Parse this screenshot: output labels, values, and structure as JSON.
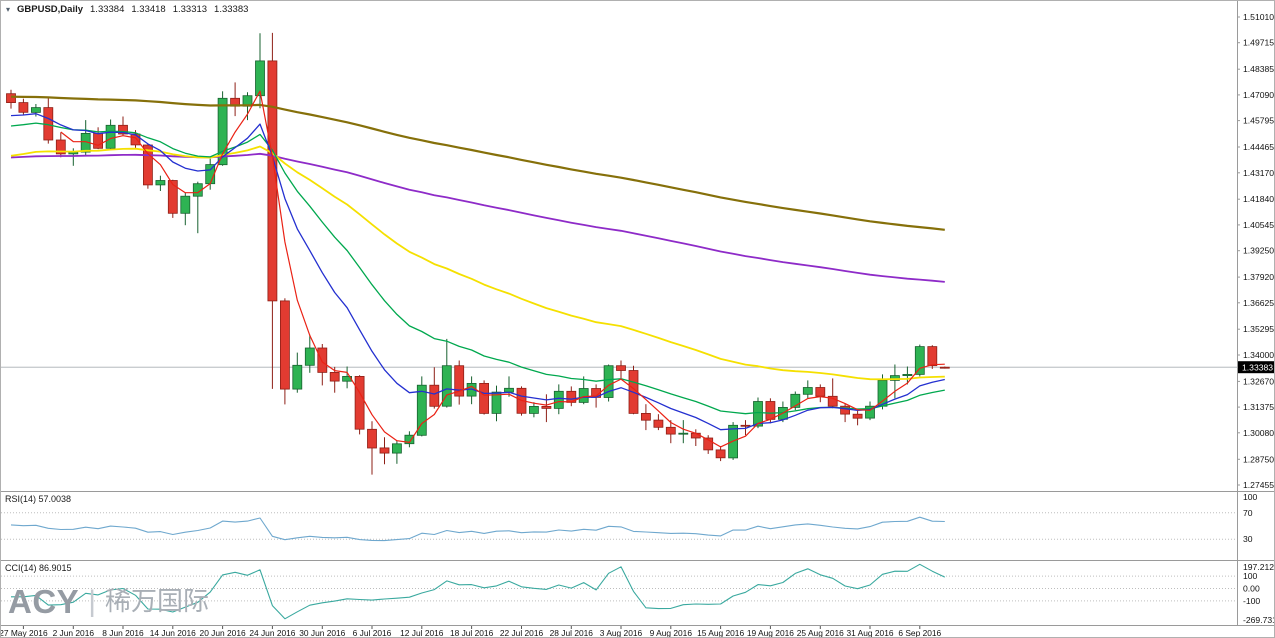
{
  "titlebar": {
    "symbol": "GBPUSD,Daily",
    "open": "1.33384",
    "high": "1.33418",
    "low": "1.33313",
    "close": "1.33383"
  },
  "icons": {
    "chart_menu": "▾"
  },
  "watermark": {
    "brand": "ACY",
    "bar": "|",
    "cn": "稀万国际"
  },
  "colors": {
    "background": "#FFFFFF",
    "border": "#9A9A9A",
    "axis_text": "#111111",
    "bull": "#2EB353",
    "bull_border": "#17612F",
    "bear": "#E23B31",
    "bear_border": "#8E1F16",
    "price_line": "#A9AFB5",
    "current_tag_bg": "#000000",
    "current_tag_text": "#FFFFFF",
    "level_dotted": "#BDBDBD"
  },
  "chart_data": {
    "type": "candlestick",
    "symbol": "GBPUSD",
    "timeframe": "Daily",
    "title": "GBPUSD,Daily",
    "price_axis": {
      "min": 1.27455,
      "max": 1.5101,
      "current": 1.33383,
      "current_label": "1.33383",
      "labels": [
        "1.51010",
        "1.49715",
        "1.48385",
        "1.47090",
        "1.45795",
        "1.44465",
        "1.43170",
        "1.41840",
        "1.40545",
        "1.39250",
        "1.37920",
        "1.36625",
        "1.35295",
        "1.34000",
        "1.32670",
        "1.31375",
        "1.30080",
        "1.28750",
        "1.27455"
      ]
    },
    "time_axis": {
      "first_index": 1,
      "step": 4,
      "labels": [
        "27 May 2016",
        "2 Jun 2016",
        "8 Jun 2016",
        "14 Jun 2016",
        "20 Jun 2016",
        "24 Jun 2016",
        "30 Jun 2016",
        "6 Jul 2016",
        "12 Jul 2016",
        "18 Jul 2016",
        "22 Jul 2016",
        "28 Jul 2016",
        "3 Aug 2016",
        "9 Aug 2016",
        "15 Aug 2016",
        "19 Aug 2016",
        "25 Aug 2016",
        "31 Aug 2016",
        "6 Sep 2016"
      ]
    },
    "candles": [
      [
        1.4715,
        1.4735,
        1.464,
        1.467
      ],
      [
        1.467,
        1.469,
        1.4607,
        1.4621
      ],
      [
        1.4621,
        1.4663,
        1.46,
        1.4645
      ],
      [
        1.4645,
        1.47,
        1.4464,
        1.4482
      ],
      [
        1.4482,
        1.452,
        1.4395,
        1.4412
      ],
      [
        1.4412,
        1.444,
        1.4352,
        1.4421
      ],
      [
        1.4421,
        1.4582,
        1.44,
        1.4515
      ],
      [
        1.4515,
        1.4546,
        1.4436,
        1.444
      ],
      [
        1.444,
        1.4585,
        1.4436,
        1.4556
      ],
      [
        1.4556,
        1.46,
        1.4505,
        1.4512
      ],
      [
        1.4512,
        1.4532,
        1.4442,
        1.4457
      ],
      [
        1.4457,
        1.4462,
        1.4237,
        1.4256
      ],
      [
        1.4256,
        1.4302,
        1.4225,
        1.4278
      ],
      [
        1.4278,
        1.4282,
        1.409,
        1.4113
      ],
      [
        1.4113,
        1.4218,
        1.4053,
        1.4199
      ],
      [
        1.4199,
        1.4272,
        1.4013,
        1.4262
      ],
      [
        1.4262,
        1.4388,
        1.4232,
        1.4358
      ],
      [
        1.4358,
        1.4727,
        1.4352,
        1.4692
      ],
      [
        1.4692,
        1.4772,
        1.4602,
        1.4652
      ],
      [
        1.4652,
        1.4722,
        1.4582,
        1.4705
      ],
      [
        1.4705,
        1.5019,
        1.4642,
        1.488
      ],
      [
        1.488,
        1.5021,
        1.3229,
        1.3672
      ],
      [
        1.3672,
        1.3685,
        1.3151,
        1.3228
      ],
      [
        1.3228,
        1.3412,
        1.321,
        1.3348
      ],
      [
        1.3348,
        1.3502,
        1.331,
        1.3435
      ],
      [
        1.3435,
        1.3455,
        1.3247,
        1.3312
      ],
      [
        1.3312,
        1.334,
        1.321,
        1.3268
      ],
      [
        1.3268,
        1.3342,
        1.3232,
        1.3292
      ],
      [
        1.3292,
        1.3298,
        1.3,
        1.3026
      ],
      [
        1.3026,
        1.3066,
        1.2798,
        1.2932
      ],
      [
        1.2932,
        1.2986,
        1.285,
        1.2906
      ],
      [
        1.2906,
        1.2968,
        1.2852,
        1.2953
      ],
      [
        1.2953,
        1.3016,
        1.2935,
        1.2996
      ],
      [
        1.2996,
        1.3292,
        1.299,
        1.3248
      ],
      [
        1.3248,
        1.3338,
        1.313,
        1.3142
      ],
      [
        1.3142,
        1.3481,
        1.3135,
        1.3346
      ],
      [
        1.3346,
        1.3372,
        1.315,
        1.3193
      ],
      [
        1.3193,
        1.3292,
        1.3152,
        1.3257
      ],
      [
        1.3257,
        1.3272,
        1.31,
        1.3106
      ],
      [
        1.3106,
        1.3246,
        1.3066,
        1.3213
      ],
      [
        1.3213,
        1.3292,
        1.319,
        1.3232
      ],
      [
        1.3232,
        1.3242,
        1.3095,
        1.3106
      ],
      [
        1.3106,
        1.3162,
        1.3086,
        1.3141
      ],
      [
        1.3141,
        1.3202,
        1.3062,
        1.3131
      ],
      [
        1.3131,
        1.3252,
        1.3102,
        1.3217
      ],
      [
        1.3217,
        1.3242,
        1.3142,
        1.3161
      ],
      [
        1.3161,
        1.3292,
        1.3152,
        1.3231
      ],
      [
        1.3231,
        1.3252,
        1.3135,
        1.3186
      ],
      [
        1.3186,
        1.3352,
        1.3166,
        1.3346
      ],
      [
        1.3346,
        1.3372,
        1.3282,
        1.3322
      ],
      [
        1.3322,
        1.3346,
        1.3102,
        1.3106
      ],
      [
        1.3106,
        1.3152,
        1.3022,
        1.3072
      ],
      [
        1.3072,
        1.3102,
        1.3022,
        1.3036
      ],
      [
        1.3036,
        1.3072,
        1.2956,
        1.3002
      ],
      [
        1.3002,
        1.3072,
        1.2956,
        1.3006
      ],
      [
        1.3006,
        1.3026,
        1.2942,
        1.2982
      ],
      [
        1.2982,
        1.2996,
        1.2902,
        1.2922
      ],
      [
        1.2922,
        1.2942,
        1.2866,
        1.2882
      ],
      [
        1.2882,
        1.3062,
        1.2872,
        1.3046
      ],
      [
        1.3046,
        1.3072,
        1.2996,
        1.3042
      ],
      [
        1.3042,
        1.3186,
        1.3032,
        1.3166
      ],
      [
        1.3166,
        1.3182,
        1.3056,
        1.3076
      ],
      [
        1.3076,
        1.3166,
        1.3062,
        1.3136
      ],
      [
        1.3136,
        1.3216,
        1.3122,
        1.3202
      ],
      [
        1.3202,
        1.3272,
        1.3182,
        1.3236
      ],
      [
        1.3236,
        1.3252,
        1.3162,
        1.3192
      ],
      [
        1.3192,
        1.3282,
        1.3132,
        1.3142
      ],
      [
        1.3142,
        1.3156,
        1.3062,
        1.3102
      ],
      [
        1.3102,
        1.3122,
        1.3046,
        1.3082
      ],
      [
        1.3082,
        1.3166,
        1.3072,
        1.3142
      ],
      [
        1.3142,
        1.3302,
        1.3126,
        1.3272
      ],
      [
        1.3272,
        1.3352,
        1.3182,
        1.3296
      ],
      [
        1.3296,
        1.3342,
        1.3252,
        1.3302
      ],
      [
        1.3302,
        1.3452,
        1.3292,
        1.3442
      ],
      [
        1.3442,
        1.3449,
        1.333,
        1.3346
      ],
      [
        1.33384,
        1.33418,
        1.33313,
        1.33383
      ]
    ],
    "overlays": [
      {
        "name": "khaki",
        "method": "ema",
        "period": 200,
        "seed": 1.47,
        "color": "#86700A",
        "width": 2.2
      },
      {
        "name": "purple",
        "method": "ema",
        "period": 150,
        "seed": 1.439,
        "color": "#8E2BC8",
        "width": 1.8
      },
      {
        "name": "yellow",
        "method": "ema",
        "period": 45,
        "seed": 1.439,
        "color": "#F5E000",
        "width": 1.8
      },
      {
        "name": "green",
        "method": "ema",
        "period": 20,
        "seed": 1.454,
        "color": "#00A84E",
        "width": 1.3
      },
      {
        "name": "blue",
        "method": "ema",
        "period": 10,
        "seed": 1.459,
        "color": "#2430D0",
        "width": 1.3
      },
      {
        "name": "red",
        "method": "wma",
        "period": 5,
        "seed": null,
        "color": "#EA2215",
        "width": 1.2
      }
    ],
    "indicators": [
      {
        "name": "RSI",
        "period": 14,
        "value": 57.0038,
        "value_label": "RSI(14) 57.0038",
        "levels": [
          70,
          30
        ],
        "scale_labels": [
          "100",
          "70",
          "30"
        ],
        "range": [
          0,
          100
        ],
        "color": "#6FA8CE",
        "warmup": {
          "avg_gain": 0.0075,
          "avg_loss": 0.007
        }
      },
      {
        "name": "CCI",
        "period": 14,
        "value": 86.9015,
        "value_label": "CCI(14) 86.9015",
        "levels": [
          100,
          0,
          -100
        ],
        "scale_labels": [
          "197.2128",
          "100",
          "0.00",
          "-100",
          "-269.7311"
        ],
        "range": [
          -269.7311,
          197.2128
        ],
        "color": "#3AA99F"
      }
    ]
  }
}
